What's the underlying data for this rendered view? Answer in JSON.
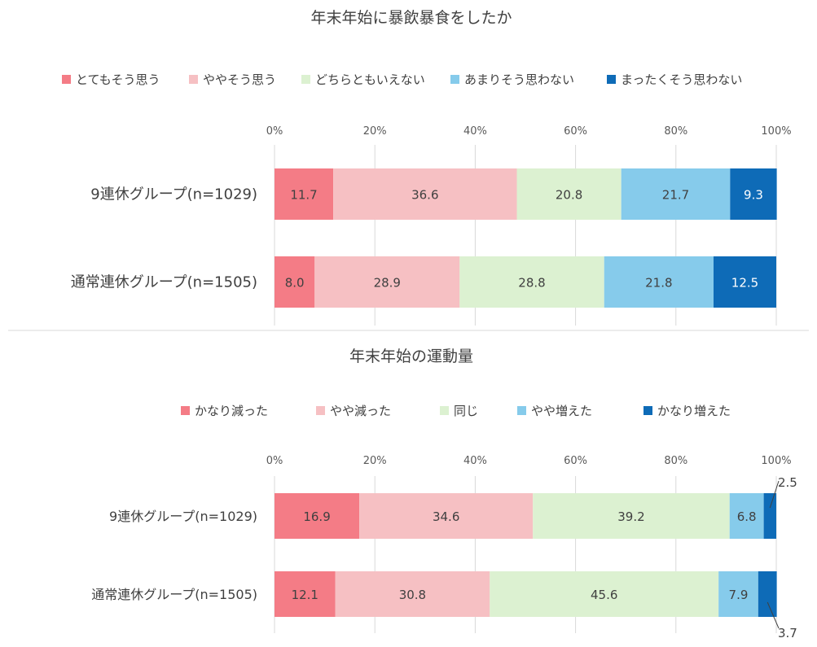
{
  "colors": [
    "#f47c86",
    "#f6c0c3",
    "#dcf1d1",
    "#86cbeb",
    "#0e6bb7"
  ],
  "value_text_colors": [
    "#404040",
    "#404040",
    "#404040",
    "#404040",
    "#ffffff"
  ],
  "chart_data": [
    {
      "type": "bar",
      "orientation": "horizontal",
      "stacked": true,
      "title": "年末年始に暴飲暴食をしたか",
      "x_ticks": [
        "0%",
        "20%",
        "40%",
        "60%",
        "80%",
        "100%"
      ],
      "xlim": [
        0,
        100
      ],
      "categories": [
        "9連休グループ(n=1029)",
        "通常連休グループ(n=1505)"
      ],
      "series": [
        {
          "name": "とてもそう思う",
          "values": [
            11.7,
            8.0
          ]
        },
        {
          "name": "ややそう思う",
          "values": [
            36.6,
            28.9
          ]
        },
        {
          "name": "どちらともいえない",
          "values": [
            20.8,
            28.8
          ]
        },
        {
          "name": "あまりそう思わない",
          "values": [
            21.7,
            21.8
          ]
        },
        {
          "name": "まったくそう思わない",
          "values": [
            9.3,
            12.5
          ]
        }
      ],
      "value_labels": [
        [
          "11.7",
          "36.6",
          "20.8",
          "21.7",
          "9.3"
        ],
        [
          "8.0",
          "28.9",
          "28.8",
          "21.8",
          "12.5"
        ]
      ]
    },
    {
      "type": "bar",
      "orientation": "horizontal",
      "stacked": true,
      "title": "年末年始の運動量",
      "x_ticks": [
        "0%",
        "20%",
        "40%",
        "60%",
        "80%",
        "100%"
      ],
      "xlim": [
        0,
        100
      ],
      "categories": [
        "9連休グループ(n=1029)",
        "通常連休グループ(n=1505)"
      ],
      "series": [
        {
          "name": "かなり減った",
          "values": [
            16.9,
            12.1
          ]
        },
        {
          "name": "やや減った",
          "values": [
            34.6,
            30.8
          ]
        },
        {
          "name": "同じ",
          "values": [
            39.2,
            45.6
          ]
        },
        {
          "name": "やや増えた",
          "values": [
            6.8,
            7.9
          ]
        },
        {
          "name": "かなり増えた",
          "values": [
            2.5,
            3.7
          ]
        }
      ],
      "value_labels": [
        [
          "16.9",
          "34.6",
          "39.2",
          "6.8",
          "2.5"
        ],
        [
          "12.1",
          "30.8",
          "45.6",
          "7.9",
          "3.7"
        ]
      ]
    }
  ]
}
